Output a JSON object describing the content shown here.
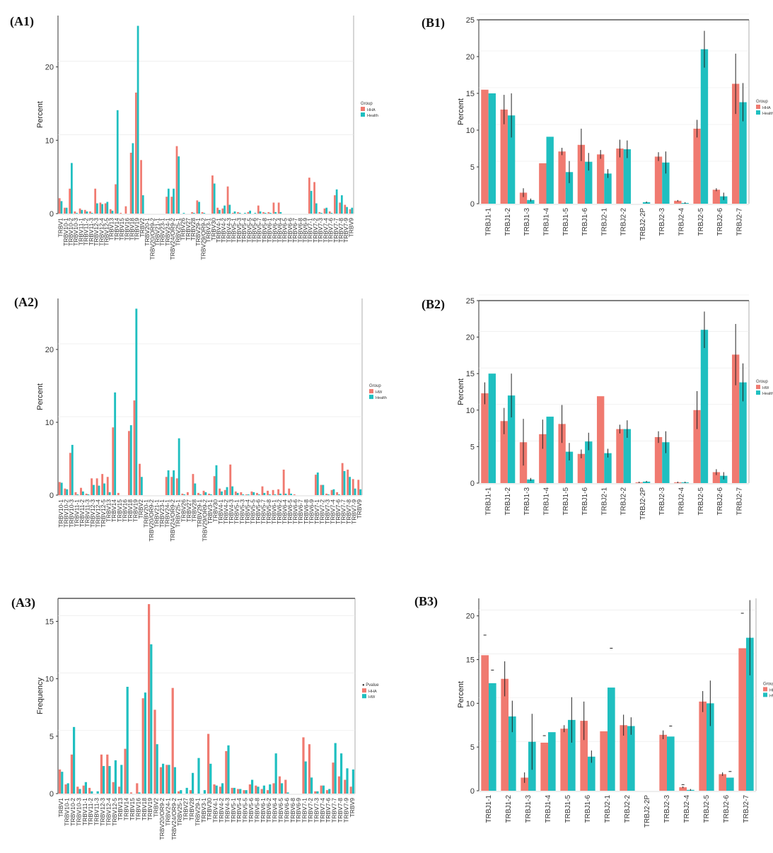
{
  "panels": [
    {
      "id": "A1",
      "label": "(A1)"
    },
    {
      "id": "A2",
      "label": "(A2)"
    },
    {
      "id": "A3",
      "label": "(A3)"
    },
    {
      "id": "B1",
      "label": "(B1)"
    },
    {
      "id": "B2",
      "label": "(B2)"
    },
    {
      "id": "B3",
      "label": "(B3)"
    }
  ],
  "colors": {
    "series1": "#f07a70",
    "series2": "#1fbfc0",
    "axis": "#333333",
    "grid": "#e8e8e8",
    "error": "#222222"
  },
  "chart_data": [
    {
      "id": "A1",
      "type": "bar",
      "title": "",
      "ylabel": "Percent",
      "xlabel": "",
      "ylim": [
        0,
        27
      ],
      "yticks": [
        0,
        10,
        20
      ],
      "legend": {
        "title": "Group",
        "entries": [
          "HHA",
          "Health"
        ],
        "position": "right"
      },
      "categories": [
        "TRBV1",
        "TRBV10-1",
        "TRBV10-2",
        "TRBV10-3",
        "TRBV11-1",
        "TRBV11-2",
        "TRBV11-3",
        "TRBV12-3",
        "TRBV12-4",
        "TRBV12-5",
        "TRBV13",
        "TRBV14",
        "TRBV15",
        "TRBV16",
        "TRBV18",
        "TRBV19",
        "TRBV2",
        "TRBV20-1",
        "TRBV20/OR9-2",
        "TRBV21-1",
        "TRBV23-1",
        "TRBV24-1",
        "TRBV24/OR9-2",
        "TRBV25-1",
        "TRBV26",
        "TRBV27",
        "TRBV28",
        "TRBV29-1",
        "TRBV29/OR9-2",
        "TRBV3-1",
        "TRBV30",
        "TRBV4-1",
        "TRBV4-2",
        "TRBV4-3",
        "TRBV5-1",
        "TRBV5-3",
        "TRBV5-4",
        "TRBV5-5",
        "TRBV5-6",
        "TRBV5-7",
        "TRBV5-8",
        "TRBV6-1",
        "TRBV6-2",
        "TRBV6-4",
        "TRBV6-5",
        "TRBV6-6",
        "TRBV6-7",
        "TRBV6-8",
        "TRBV6-9",
        "TRBV7-1",
        "TRBV7-2",
        "TRBV7-3",
        "TRBV7-4",
        "TRBV7-6",
        "TRBV7-7",
        "TRBV7-8",
        "TRBV7-9",
        "TRBV9"
      ],
      "series": [
        {
          "name": "HHA",
          "values": [
            2.1,
            0.8,
            3.4,
            0.3,
            0.7,
            0.5,
            0.3,
            3.4,
            1.5,
            1.4,
            0.6,
            4.0,
            0.1,
            1.0,
            8.3,
            16.5,
            7.3,
            0,
            0,
            0,
            0,
            2.3,
            2.3,
            9.2,
            0,
            0,
            0.2,
            1.8,
            0.2,
            0,
            5.2,
            0.8,
            0.7,
            3.7,
            0.1,
            0.2,
            0,
            0.2,
            0,
            1.1,
            0.2,
            0.2,
            1.5,
            1.5,
            0,
            0,
            0,
            0,
            0,
            4.9,
            4.3,
            0.2,
            0.7,
            0.3,
            2.5,
            1.5,
            1.2,
            0.6
          ]
        },
        {
          "name": "Health",
          "values": [
            1.7,
            0.8,
            6.9,
            0.1,
            0.5,
            0.3,
            0.1,
            1.4,
            1.3,
            1.6,
            0.4,
            14.1,
            0,
            0,
            9.6,
            25.6,
            2.5,
            0,
            0,
            0,
            0,
            3.4,
            3.4,
            7.8,
            0.1,
            0,
            0.1,
            1.6,
            0.1,
            0,
            4.1,
            0.5,
            1.1,
            1.2,
            0.3,
            0.1,
            0.1,
            0.4,
            0.1,
            0.3,
            0.1,
            0.1,
            0.2,
            0.2,
            0,
            0,
            0,
            0,
            0,
            3.1,
            1.4,
            0.1,
            0.8,
            0.1,
            3.3,
            2.5,
            0.9,
            0.8
          ]
        }
      ]
    },
    {
      "id": "A2",
      "type": "bar",
      "title": "",
      "ylabel": "Percent",
      "xlabel": "",
      "ylim": [
        0,
        27
      ],
      "yticks": [
        0,
        10,
        20
      ],
      "legend": {
        "title": "Group",
        "entries": [
          "HW",
          "Health"
        ],
        "position": "right"
      },
      "categories": [
        "TRBV10-1",
        "TRBV10-2",
        "TRBV10-3",
        "TRBV11-1",
        "TRBV11-2",
        "TRBV11-3",
        "TRBV12-3",
        "TRBV12-4",
        "TRBV12-5",
        "TRBV13",
        "TRBV14",
        "TRBV15",
        "TRBV16",
        "TRBV18",
        "TRBV19",
        "TRBV2",
        "TRBV20-1",
        "TRBV20/OR9-2",
        "TRBV21-1",
        "TRBV23-1",
        "TRBV24-1",
        "TRBV24/OR9-2",
        "TRBV25-1",
        "TRBV26",
        "TRBV27",
        "TRBV28",
        "TRBV29-1",
        "TRBV29/OR9-2",
        "TRBV3-1",
        "TRBV30",
        "TRBV4-1",
        "TRBV4-2",
        "TRBV4-3",
        "TRBV5-1",
        "TRBV5-3",
        "TRBV5-4",
        "TRBV5-5",
        "TRBV5-6",
        "TRBV5-7",
        "TRBV5-8",
        "TRBV6-1",
        "TRBV6-2",
        "TRBV6-4",
        "TRBV6-5",
        "TRBV6-6",
        "TRBV6-7",
        "TRBV6-8",
        "TRBV6-9",
        "TRBV7-1",
        "TRBV7-2",
        "TRBV7-3",
        "TRBV7-4",
        "TRBV7-6",
        "TRBV7-7",
        "TRBV7-8",
        "TRBV7-9",
        "TRBV9"
      ],
      "series": [
        {
          "name": "HW",
          "values": [
            1.8,
            0.9,
            5.8,
            0.4,
            1.0,
            0.2,
            2.3,
            2.3,
            2.9,
            2.5,
            9.3,
            0.3,
            0,
            8.8,
            13.0,
            4.3,
            0,
            0,
            0,
            0,
            2.5,
            2.5,
            2.3,
            0.2,
            0.4,
            2.9,
            0.3,
            0.6,
            0.2,
            2.6,
            0.9,
            0.7,
            4.2,
            0.5,
            0.4,
            0.1,
            0.5,
            0.3,
            1.2,
            0.6,
            0.7,
            0.8,
            3.5,
            0.9,
            0.1,
            0,
            0,
            0,
            2.8,
            1.4,
            0.2,
            0.7,
            0.4,
            4.4,
            3.5,
            2.2,
            2.1
          ]
        },
        {
          "name": "Health",
          "values": [
            1.7,
            0.8,
            6.9,
            0.1,
            0.5,
            0.1,
            1.4,
            1.3,
            1.6,
            0.4,
            14.1,
            0,
            0,
            9.6,
            25.6,
            2.5,
            0,
            0,
            0,
            0,
            3.4,
            3.4,
            7.8,
            0.1,
            0,
            1.6,
            0.1,
            0.4,
            0.1,
            4.1,
            0.5,
            1.1,
            1.2,
            0.3,
            0.1,
            0.1,
            0.4,
            0.1,
            0.3,
            0.1,
            0.1,
            0.2,
            0.2,
            0.2,
            0,
            0,
            0,
            0,
            3.1,
            1.4,
            0.1,
            0.8,
            0.1,
            3.3,
            2.5,
            0.9,
            0.8
          ]
        }
      ]
    },
    {
      "id": "A3",
      "type": "bar",
      "title": "",
      "ylabel": "Frequency",
      "xlabel": "",
      "ylim": [
        0,
        17
      ],
      "yticks": [
        0,
        5,
        10,
        15
      ],
      "legend": {
        "title": "● Pvalue",
        "entries": [
          "HHA",
          "HW"
        ],
        "position": "right"
      },
      "categories": [
        "TRBV1",
        "TRBV10-1",
        "TRBV10-2",
        "TRBV10-3",
        "TRBV11-1",
        "TRBV11-2",
        "TRBV11-3",
        "TRBV12-3",
        "TRBV12-4",
        "TRBV12-5",
        "TRBV13",
        "TRBV14",
        "TRBV15",
        "TRBV16",
        "TRBV18",
        "TRBV19",
        "TRBV2",
        "TRBV20/OR9-2",
        "TRBV24-1",
        "TRBV24/OR9-2",
        "TRBV25-1",
        "TRBV27",
        "TRBV28",
        "TRBV29-1",
        "TRBV3-1",
        "TRBV30",
        "TRBV4-1",
        "TRBV4-2",
        "TRBV4-3",
        "TRBV5-1",
        "TRBV5-4",
        "TRBV5-5",
        "TRBV5-6",
        "TRBV5-8",
        "TRBV6-1",
        "TRBV6-2",
        "TRBV6-4",
        "TRBV6-5",
        "TRBV6-6",
        "TRBV6-8",
        "TRBV6-9",
        "TRBV7-1",
        "TRBV7-2",
        "TRBV7-3",
        "TRBV7-4",
        "TRBV7-6",
        "TRBV7-7",
        "TRBV7-8",
        "TRBV7-9",
        "TRBV9"
      ],
      "series": [
        {
          "name": "HHA",
          "values": [
            2.1,
            0.8,
            3.4,
            0.6,
            0.7,
            0.5,
            0,
            3.4,
            3.4,
            1.0,
            0.6,
            3.9,
            0.1,
            0.9,
            8.3,
            16.5,
            7.3,
            2.3,
            2.5,
            9.2,
            0.2,
            0,
            0.3,
            0,
            0,
            5.2,
            0.8,
            0.6,
            3.7,
            0.5,
            0.4,
            0.3,
            0.8,
            0.7,
            0.4,
            0.3,
            0.9,
            1.5,
            1.2,
            0,
            0,
            4.9,
            4.3,
            0.2,
            0.7,
            0.3,
            2.7,
            1.5,
            1.2,
            0.6
          ]
        },
        {
          "name": "HW",
          "values": [
            1.9,
            0.9,
            5.8,
            0.4,
            1.0,
            0.2,
            0.2,
            2.4,
            2.4,
            2.9,
            2.5,
            9.3,
            0,
            0.1,
            8.8,
            13.0,
            4.3,
            2.6,
            2.5,
            2.3,
            0.3,
            0.5,
            1.8,
            3.1,
            0.3,
            2.6,
            0.7,
            0.9,
            4.2,
            0.5,
            0.4,
            0.3,
            1.2,
            0.6,
            0.7,
            0.8,
            3.5,
            0.9,
            0.1,
            0,
            0,
            2.8,
            1.4,
            0.2,
            0.7,
            0.4,
            4.4,
            3.5,
            2.2,
            2.1
          ]
        }
      ]
    },
    {
      "id": "B1",
      "type": "bar",
      "title": "",
      "ylabel": "Percent",
      "xlabel": "",
      "ylim": [
        0,
        25
      ],
      "yticks": [
        0,
        5,
        10,
        15,
        20,
        25
      ],
      "legend": {
        "title": "Group",
        "entries": [
          "HHA",
          "Health"
        ],
        "position": "right"
      },
      "categories": [
        "TRBJ1-1",
        "TRBJ1-2",
        "TRBJ1-3",
        "TRBJ1-4",
        "TRBJ1-5",
        "TRBJ1-6",
        "TRBJ2-1",
        "TRBJ2-2",
        "TRBJ2-2P",
        "TRBJ2-3",
        "TRBJ2-4",
        "TRBJ2-5",
        "TRBJ2-6",
        "TRBJ2-7"
      ],
      "series": [
        {
          "name": "HHA",
          "values": [
            15.5,
            12.8,
            1.5,
            5.5,
            7.1,
            8.0,
            6.7,
            7.5,
            0,
            6.4,
            0.4,
            10.2,
            1.9,
            16.3
          ],
          "errors": [
            0,
            2.0,
            0.6,
            0,
            0.5,
            2.2,
            0.6,
            1.2,
            0,
            0.6,
            0.1,
            1.2,
            0.2,
            4.1
          ]
        },
        {
          "name": "Health",
          "values": [
            15.0,
            12.0,
            0.5,
            9.1,
            4.3,
            5.7,
            4.1,
            7.4,
            0.2,
            5.6,
            0.1,
            21.0,
            1.0,
            13.8
          ],
          "errors": [
            0,
            3.0,
            0.2,
            0,
            1.5,
            1.2,
            0.6,
            1.2,
            0.1,
            1.5,
            0.1,
            2.5,
            0.5,
            2.6
          ]
        }
      ]
    },
    {
      "id": "B2",
      "type": "bar",
      "title": "",
      "ylabel": "Percent",
      "xlabel": "",
      "ylim": [
        0,
        25
      ],
      "yticks": [
        0,
        5,
        10,
        15,
        20,
        25
      ],
      "legend": {
        "title": "Group",
        "entries": [
          "HW",
          "Health"
        ],
        "position": "right"
      },
      "categories": [
        "TRBJ1-1",
        "TRBJ1-2",
        "TRBJ1-3",
        "TRBJ1-4",
        "TRBJ1-5",
        "TRBJ1-6",
        "TRBJ2-1",
        "TRBJ2-2",
        "TRBJ2-2P",
        "TRBJ2-3",
        "TRBJ2-4",
        "TRBJ2-5",
        "TRBJ2-6",
        "TRBJ2-7"
      ],
      "series": [
        {
          "name": "HW",
          "values": [
            12.3,
            8.5,
            5.6,
            6.7,
            8.1,
            4.0,
            11.9,
            7.4,
            0.1,
            6.3,
            0.1,
            10.0,
            1.5,
            17.6
          ],
          "errors": [
            1.5,
            1.8,
            3.2,
            2.0,
            2.6,
            0.6,
            0,
            0.6,
            0.1,
            0.8,
            0.1,
            2.6,
            0.4,
            4.2
          ]
        },
        {
          "name": "Health",
          "values": [
            15.0,
            12.0,
            0.5,
            9.1,
            4.3,
            5.7,
            4.1,
            7.4,
            0.2,
            5.6,
            0.1,
            21.0,
            1.0,
            13.8
          ],
          "errors": [
            0,
            3.0,
            0.2,
            0,
            1.2,
            1.2,
            0.6,
            1.2,
            0.1,
            1.5,
            0.1,
            2.5,
            0.5,
            2.6
          ]
        }
      ]
    },
    {
      "id": "B3",
      "type": "bar",
      "title": "",
      "ylabel": "Percent",
      "xlabel": "",
      "ylim": [
        0,
        22
      ],
      "yticks": [
        0,
        5,
        10,
        15,
        20
      ],
      "legend": {
        "title": "Group",
        "entries": [
          "HHA",
          "HW"
        ],
        "position": "right"
      },
      "categories": [
        "TRBJ1-1",
        "TRBJ1-2",
        "TRBJ1-3",
        "TRBJ1-4",
        "TRBJ1-5",
        "TRBJ1-6",
        "TRBJ2-1",
        "TRBJ2-2",
        "TRBJ2-2P",
        "TRBJ2-3",
        "TRBJ2-4",
        "TRBJ2-5",
        "TRBJ2-6",
        "TRBJ2-7"
      ],
      "series": [
        {
          "name": "HHA",
          "values": [
            15.5,
            12.8,
            1.5,
            5.5,
            7.1,
            8.0,
            6.8,
            7.5,
            0,
            6.4,
            0.4,
            10.2,
            1.9,
            16.3
          ],
          "errors": [
            0,
            2.0,
            0.6,
            0,
            0.4,
            2.2,
            0,
            1.2,
            0,
            0.5,
            0.1,
            1.2,
            0.2,
            0
          ],
          "marks": [
            17.8,
            0,
            0,
            6.3,
            0,
            0,
            0,
            0,
            0,
            0,
            0.7,
            0,
            0,
            20.3
          ]
        },
        {
          "name": "HW",
          "values": [
            12.3,
            8.5,
            5.6,
            6.7,
            8.1,
            3.9,
            11.8,
            7.4,
            0,
            6.2,
            0.1,
            10.0,
            1.5,
            17.5
          ],
          "errors": [
            0,
            1.8,
            3.2,
            0,
            2.6,
            0.7,
            0,
            1.0,
            0,
            0,
            0.1,
            2.6,
            0,
            4.3
          ],
          "marks": [
            13.8,
            0,
            0,
            0,
            0,
            0,
            16.3,
            0,
            0,
            7.4,
            0,
            0,
            2.2,
            0
          ]
        }
      ]
    }
  ]
}
